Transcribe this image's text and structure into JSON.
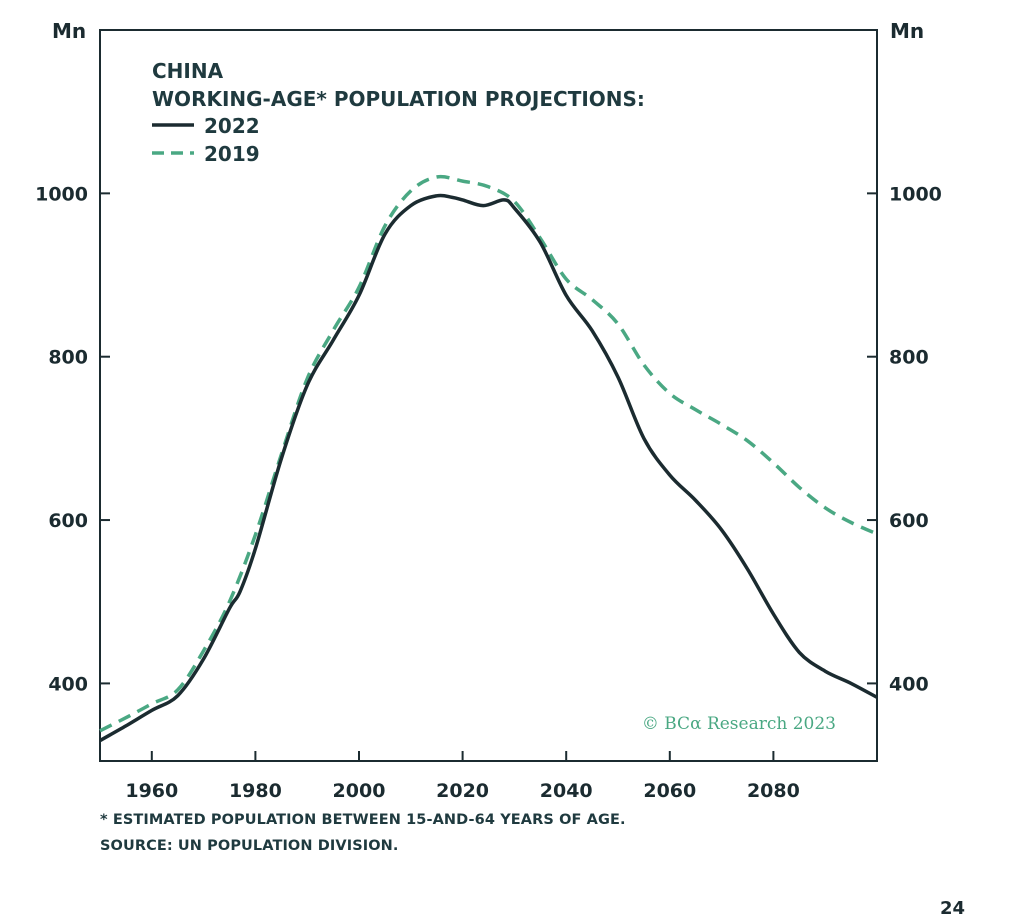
{
  "chart_data": {
    "type": "line",
    "title": "CHINA",
    "subtitle": "WORKING-AGE* POPULATION PROJECTIONS:",
    "unit_left": "Mn",
    "unit_right": "Mn",
    "xlim": [
      1950,
      2100
    ],
    "ylim": [
      305,
      1200
    ],
    "x_ticks": [
      1960,
      1980,
      2000,
      2020,
      2040,
      2060,
      2080
    ],
    "x_tick_labels": [
      "1960",
      "1980",
      "2000",
      "2020",
      "2040",
      "2060",
      "2080"
    ],
    "y_ticks": [
      400,
      600,
      800,
      1000
    ],
    "y_tick_labels": [
      "400",
      "600",
      "800",
      "1000"
    ],
    "y_minor_ticks": [
      1200
    ],
    "grid": false,
    "legend_position": "top-left",
    "series": [
      {
        "name": "2022",
        "style": "solid",
        "color": "#1b2b30",
        "x": [
          1950,
          1955,
          1960,
          1965,
          1970,
          1975,
          1977,
          1980,
          1985,
          1990,
          1995,
          2000,
          2005,
          2010,
          2015,
          2018,
          2020,
          2024,
          2028,
          2030,
          2035,
          2040,
          2045,
          2050,
          2055,
          2060,
          2065,
          2070,
          2075,
          2080,
          2085,
          2090,
          2095,
          2100
        ],
        "values": [
          330,
          348,
          367,
          385,
          430,
          492,
          512,
          565,
          675,
          765,
          820,
          875,
          950,
          985,
          997,
          995,
          992,
          985,
          992,
          982,
          940,
          875,
          832,
          775,
          700,
          655,
          624,
          588,
          540,
          485,
          438,
          415,
          400,
          383
        ]
      },
      {
        "name": "2019",
        "style": "dashed",
        "color": "#4aa883",
        "x": [
          1950,
          1955,
          1960,
          1965,
          1970,
          1975,
          1980,
          1985,
          1990,
          1995,
          2000,
          2005,
          2010,
          2015,
          2020,
          2025,
          2030,
          2035,
          2040,
          2045,
          2050,
          2055,
          2060,
          2065,
          2070,
          2075,
          2080,
          2085,
          2090,
          2095,
          2100
        ],
        "values": [
          342,
          358,
          375,
          392,
          440,
          500,
          582,
          680,
          773,
          832,
          885,
          960,
          1003,
          1020,
          1015,
          1008,
          990,
          945,
          895,
          870,
          840,
          790,
          755,
          735,
          717,
          697,
          670,
          640,
          615,
          597,
          583
        ]
      }
    ],
    "annotation": "© BCα Research 2023"
  },
  "footnotes": {
    "note": "* ESTIMATED POPULATION BETWEEN 15-AND-64 YEARS OF AGE.",
    "source": "SOURCE: UN POPULATION DIVISION."
  },
  "page_number": "24",
  "colors": {
    "line_2022": "#1b2b30",
    "line_2019": "#4aa883",
    "axis": "#1b2b30"
  }
}
